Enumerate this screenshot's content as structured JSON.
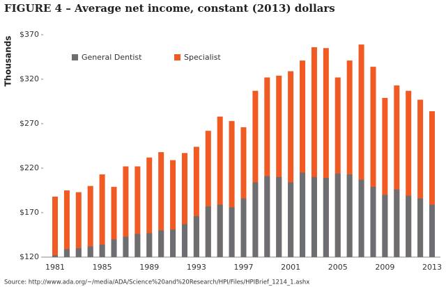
{
  "chart_data": {
    "type": "bar",
    "title": "FIGURE 4 – Average net income, constant (2013) dollars",
    "y_label": "Thousands",
    "source": "Source: http://www.ada.org/~/media/ADA/Science%20and%20Research/HPI/Files/HPIBrief_1214_1.ashx",
    "categories": [
      "1981",
      null,
      null,
      null,
      "1985",
      null,
      null,
      null,
      "1989",
      null,
      null,
      null,
      "1993",
      null,
      null,
      null,
      "1997",
      null,
      null,
      null,
      "2001",
      null,
      null,
      null,
      "2005",
      null,
      null,
      null,
      "2009",
      null,
      null,
      null,
      "2013"
    ],
    "series": [
      {
        "name": "General Dentist",
        "color": "#6d6e71",
        "values": [
          122,
          129,
          130,
          132,
          134,
          140,
          143,
          146,
          147,
          150,
          151,
          157,
          166,
          177,
          179,
          176,
          186,
          204,
          211,
          210,
          204,
          215,
          210,
          209,
          214,
          213,
          207,
          199,
          190,
          196,
          189,
          186,
          179
        ]
      },
      {
        "name": "Specialist",
        "color": "#f15a22",
        "values": [
          188,
          195,
          193,
          200,
          213,
          199,
          222,
          222,
          232,
          238,
          229,
          237,
          244,
          262,
          278,
          273,
          266,
          307,
          322,
          324,
          329,
          341,
          356,
          355,
          322,
          341,
          359,
          334,
          299,
          313,
          307,
          297,
          284
        ]
      }
    ],
    "ylim": [
      120,
      370
    ],
    "yticks": [
      {
        "value": 120,
        "label": "$120"
      },
      {
        "value": 170,
        "label": "$170"
      },
      {
        "value": 220,
        "label": "$220"
      },
      {
        "value": 270,
        "label": "$270"
      },
      {
        "value": 320,
        "label": "$320"
      },
      {
        "value": 370,
        "label": "$370"
      }
    ],
    "grid": false
  }
}
